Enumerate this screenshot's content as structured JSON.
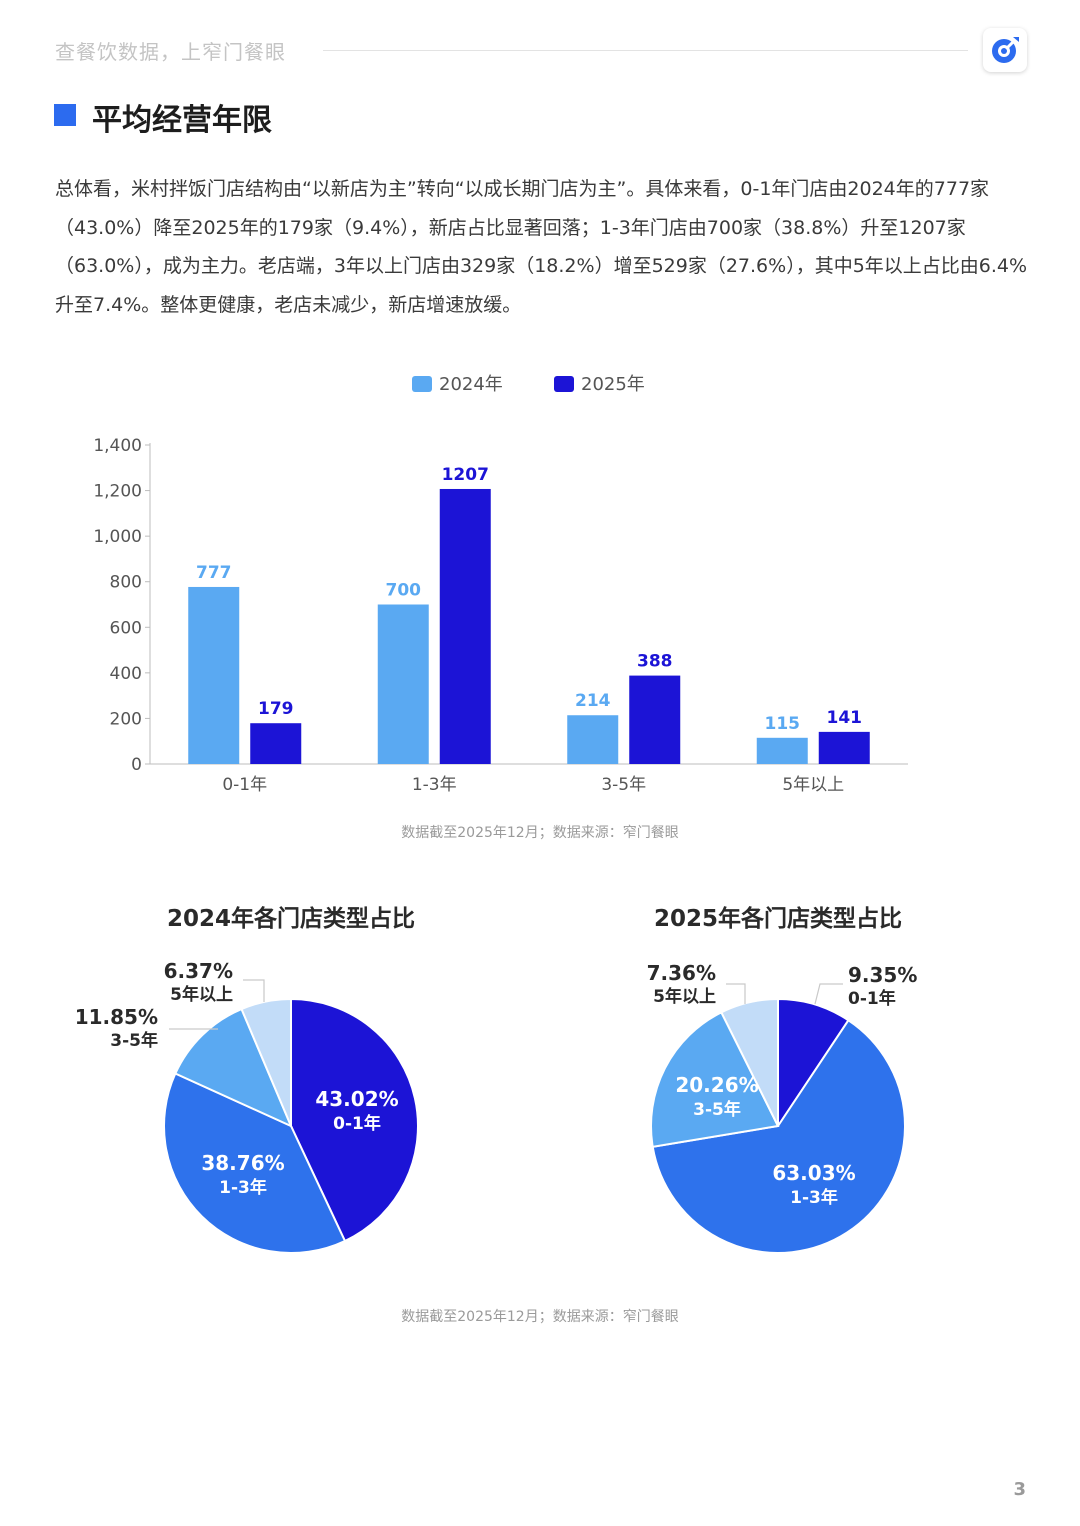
{
  "header": {
    "slogan": "查餐饮数据，上窄门餐眼",
    "logo_icon": "target-logo-icon"
  },
  "title": "平均经营年限",
  "summary": "总体看，米村拌饭门店结构由“以新店为主”转向“以成长期门店为主”。具体来看，0-1年门店由2024年的777家（43.0%）降至2025年的179家（9.4%），新店占比显著回落；1-3年门店由700家（38.8%）升至1207家（63.0%），成为主力。老店端，3年以上门店由329家（18.2%）增至529家（27.6%），其中5年以上占比由6.4%升至7.4%。整体更健康，老店未减少，新店增速放缓。",
  "colors": {
    "accent": "#2c6bef",
    "series_2024": "#5aa9f2",
    "series_2025": "#1c14d6",
    "pie_0_1": "#1c14d6",
    "pie_1_3": "#2e72ec",
    "pie_3_5": "#5aa9f2",
    "pie_5plus": "#c2dcf8"
  },
  "chart_data": [
    {
      "type": "bar",
      "categories": [
        "0-1年",
        "1-3年",
        "3-5年",
        "5年以上"
      ],
      "series": [
        {
          "name": "2024年",
          "values": [
            777,
            700,
            214,
            115
          ]
        },
        {
          "name": "2025年",
          "values": [
            179,
            1207,
            388,
            141
          ]
        }
      ],
      "ylim": [
        0,
        1400
      ],
      "yticks": [
        "0",
        "200",
        "400",
        "600",
        "800",
        "1,000",
        "1,200",
        "1,400"
      ],
      "legend": "top-center",
      "grid": false
    },
    {
      "type": "pie",
      "title": "2024年各门店类型占比",
      "slices": [
        {
          "label": "0-1年",
          "pct_text": "43.02%",
          "value": 43.02
        },
        {
          "label": "1-3年",
          "pct_text": "38.76%",
          "value": 38.76
        },
        {
          "label": "3-5年",
          "pct_text": "11.85%",
          "value": 11.85
        },
        {
          "label": "5年以上",
          "pct_text": "6.37%",
          "value": 6.37
        }
      ]
    },
    {
      "type": "pie",
      "title": "2025年各门店类型占比",
      "slices": [
        {
          "label": "0-1年",
          "pct_text": "9.35%",
          "value": 9.35
        },
        {
          "label": "1-3年",
          "pct_text": "63.03%",
          "value": 63.03
        },
        {
          "label": "3-5年",
          "pct_text": "20.26%",
          "value": 20.26
        },
        {
          "label": "5年以上",
          "pct_text": "7.36%",
          "value": 7.36
        }
      ]
    }
  ],
  "footnotes": {
    "bar": "数据截至2025年12月；数据来源：窄门餐眼",
    "pie": "数据截至2025年12月；数据来源：窄门餐眼"
  },
  "watermark": "窄门餐眼",
  "page_number": "3"
}
